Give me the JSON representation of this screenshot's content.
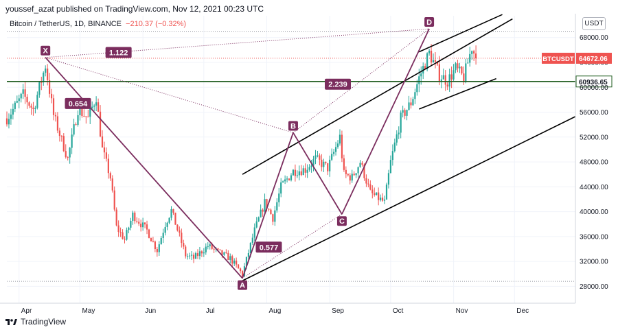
{
  "header": {
    "published_by": "youssef_azat published on TradingView.com, Nov 12, 2021 00:23 UTC",
    "symbol": "Bitcoin / TetherUS, 1D, BINANCE",
    "change": "−210.37 (−0.32%)",
    "currency_button": "USDT"
  },
  "footer": {
    "brand": "TradingView"
  },
  "colors": {
    "up": "#26a69a",
    "down": "#ef5350",
    "harmonic": "#7b2d5e",
    "channel": "#000000",
    "hline": "#1e5b1e",
    "price_label": "#ef5350"
  },
  "chart_data": {
    "type": "candlestick",
    "ylim": [
      26500,
      71500
    ],
    "y_ticks": [
      "68000.00",
      "64000.00",
      "60000.00",
      "56000.00",
      "52000.00",
      "48000.00",
      "44000.00",
      "40000.00",
      "36000.00",
      "32000.00",
      "28000.00"
    ],
    "x_labels": [
      "Apr",
      "May",
      "Jun",
      "Jul",
      "Aug",
      "Sep",
      "Oct",
      "Nov",
      "Dec"
    ],
    "x_range": [
      "2021-03-26",
      "2021-12-31"
    ],
    "last_price": 64672.06,
    "price_label": {
      "text": "BTCUSDT",
      "value": "64672.06"
    },
    "hline": {
      "value": 60936.65,
      "label": "60936.65"
    },
    "harmonic_points": [
      {
        "label": "X",
        "date": "2021-04-14",
        "price": 64800
      },
      {
        "label": "A",
        "date": "2021-07-20",
        "price": 29300
      },
      {
        "label": "B",
        "date": "2021-08-14",
        "price": 52700
      },
      {
        "label": "C",
        "date": "2021-09-07",
        "price": 39600
      },
      {
        "label": "D",
        "date": "2021-10-20",
        "price": 69400
      }
    ],
    "ratios": [
      {
        "value": "1.122",
        "date": "2021-05-20",
        "price": 65600
      },
      {
        "value": "0.654",
        "date": "2021-04-30",
        "price": 57400
      },
      {
        "value": "2.239",
        "date": "2021-09-05",
        "price": 60500
      },
      {
        "value": "0.577",
        "date": "2021-08-02",
        "price": 34300
      }
    ],
    "channel_lines": [
      {
        "from": [
          "2021-07-20",
          46000
        ],
        "to": [
          "2021-11-30",
          71000
        ]
      },
      {
        "from": [
          "2021-07-20",
          28900
        ],
        "to": [
          "2021-12-31",
          55300
        ]
      },
      {
        "from": [
          "2021-10-15",
          65700
        ],
        "to": [
          "2021-11-25",
          71700
        ]
      },
      {
        "from": [
          "2021-10-15",
          56500
        ],
        "to": [
          "2021-11-22",
          61400
        ]
      }
    ],
    "path": [
      [
        "2021-03-26",
        55000
      ],
      [
        "2021-04-03",
        58800
      ],
      [
        "2021-04-08",
        56400
      ],
      [
        "2021-04-14",
        63500
      ],
      [
        "2021-04-18",
        55500
      ],
      [
        "2021-04-25",
        48500
      ],
      [
        "2021-04-30",
        56500
      ],
      [
        "2021-05-05",
        55000
      ],
      [
        "2021-05-09",
        58500
      ],
      [
        "2021-05-12",
        50000
      ],
      [
        "2021-05-16",
        45500
      ],
      [
        "2021-05-19",
        37500
      ],
      [
        "2021-05-23",
        35500
      ],
      [
        "2021-05-27",
        39500
      ],
      [
        "2021-06-03",
        37000
      ],
      [
        "2021-06-08",
        33800
      ],
      [
        "2021-06-12",
        38000
      ],
      [
        "2021-06-15",
        40200
      ],
      [
        "2021-06-22",
        33000
      ],
      [
        "2021-06-26",
        32500
      ],
      [
        "2021-07-03",
        34500
      ],
      [
        "2021-07-08",
        33500
      ],
      [
        "2021-07-14",
        32500
      ],
      [
        "2021-07-20",
        29900
      ],
      [
        "2021-07-26",
        37000
      ],
      [
        "2021-07-31",
        41500
      ],
      [
        "2021-08-04",
        39000
      ],
      [
        "2021-08-08",
        44000
      ],
      [
        "2021-08-14",
        46500
      ],
      [
        "2021-08-20",
        46800
      ],
      [
        "2021-08-25",
        48500
      ],
      [
        "2021-08-31",
        47000
      ],
      [
        "2021-09-06",
        52000
      ],
      [
        "2021-09-08",
        46000
      ],
      [
        "2021-09-12",
        45500
      ],
      [
        "2021-09-16",
        48000
      ],
      [
        "2021-09-21",
        43000
      ],
      [
        "2021-09-28",
        41500
      ],
      [
        "2021-10-01",
        48000
      ],
      [
        "2021-10-06",
        55000
      ],
      [
        "2021-10-11",
        57500
      ],
      [
        "2021-10-15",
        61500
      ],
      [
        "2021-10-20",
        65500
      ],
      [
        "2021-10-25",
        62000
      ],
      [
        "2021-10-29",
        61000
      ],
      [
        "2021-11-02",
        63000
      ],
      [
        "2021-11-06",
        61500
      ],
      [
        "2021-11-10",
        66500
      ],
      [
        "2021-11-12",
        64672
      ]
    ]
  }
}
